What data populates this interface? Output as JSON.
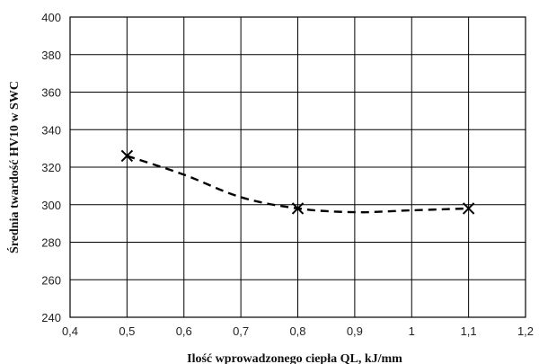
{
  "chart_data": {
    "type": "scatter",
    "title": "",
    "xlabel": "Ilość wprowadzonego ciepła QL, kJ/mm",
    "ylabel": "Średnia twardość HV10 w SWC",
    "xlim": [
      0.4,
      1.2
    ],
    "ylim": [
      240,
      400
    ],
    "x_ticks": [
      0.4,
      0.5,
      0.6,
      0.7,
      0.8,
      0.9,
      1.0,
      1.1,
      1.2
    ],
    "x_tick_labels": [
      "0,4",
      "0,5",
      "0,6",
      "0,7",
      "0,8",
      "0,9",
      "1",
      "1,1",
      "1,2"
    ],
    "y_ticks": [
      240,
      260,
      280,
      300,
      320,
      340,
      360,
      380,
      400
    ],
    "y_tick_labels": [
      "240",
      "260",
      "280",
      "300",
      "320",
      "340",
      "360",
      "380",
      "400"
    ],
    "grid": true,
    "legend": "none",
    "marker": "x",
    "series": [
      {
        "x": [
          0.5,
          0.8,
          1.1
        ],
        "y": [
          326,
          298,
          298
        ]
      }
    ],
    "trendline": {
      "style": "dashed",
      "kind": "polynomial",
      "x": [
        0.5,
        0.6,
        0.7,
        0.8,
        0.9,
        1.0,
        1.1
      ],
      "y": [
        326,
        316,
        304,
        298,
        296,
        297,
        298
      ]
    },
    "colors": {
      "axis": "#000000",
      "grid": "#000000",
      "series": "#000000"
    }
  }
}
